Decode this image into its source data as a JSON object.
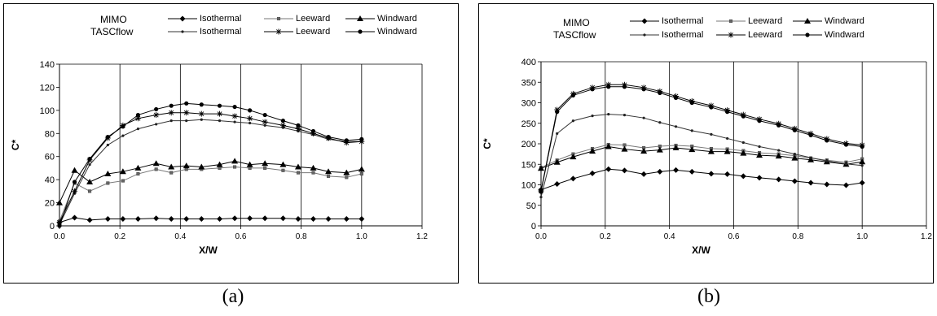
{
  "chart_data": [
    {
      "type": "line",
      "panel_label": "(a)",
      "xlabel": "X/W",
      "ylabel": "C*",
      "xlim": [
        0,
        1.2
      ],
      "ylim": [
        0,
        140
      ],
      "xticks": [
        "0.0",
        "0.2",
        "0.4",
        "0.6",
        "0.8",
        "1.0",
        "1.2"
      ],
      "yticks": [
        "0",
        "20",
        "40",
        "60",
        "80",
        "100",
        "120",
        "140"
      ],
      "legend_groups": [
        "MIMO",
        "TASCflow"
      ],
      "grid": "vertical",
      "legend_position": "top",
      "x": [
        0.0,
        0.05,
        0.1,
        0.16,
        0.21,
        0.26,
        0.32,
        0.37,
        0.42,
        0.47,
        0.53,
        0.58,
        0.63,
        0.68,
        0.74,
        0.79,
        0.84,
        0.89,
        0.95,
        1.0
      ],
      "series": [
        {
          "name": "Isothermal",
          "group": "MIMO",
          "marker": "diamond",
          "values": [
            3,
            7,
            5,
            6,
            6,
            6,
            6.5,
            6,
            6,
            6,
            6,
            6.5,
            6.5,
            6.5,
            6.5,
            6,
            6,
            6,
            6,
            6
          ]
        },
        {
          "name": "Leeward",
          "group": "MIMO",
          "marker": "square",
          "values": [
            4,
            37,
            30,
            37,
            39,
            45,
            49,
            46,
            49,
            49,
            50,
            51,
            50,
            50,
            48,
            46,
            46,
            43,
            42,
            45
          ]
        },
        {
          "name": "Windward",
          "group": "MIMO",
          "marker": "triangle",
          "values": [
            20,
            48,
            38,
            45,
            47,
            50,
            54,
            51,
            52,
            51,
            53,
            56,
            53,
            54,
            53,
            51,
            50,
            47,
            46,
            49
          ]
        },
        {
          "name": "Isothermal",
          "group": "TASCflow",
          "marker": "dot",
          "values": [
            1,
            28,
            53,
            70,
            78,
            84,
            88,
            91,
            91,
            92,
            91,
            90,
            89,
            87,
            85,
            82,
            79,
            75,
            73,
            73
          ]
        },
        {
          "name": "Leeward",
          "group": "TASCflow",
          "marker": "star",
          "values": [
            3,
            30,
            57,
            76,
            87,
            93,
            96,
            98,
            98,
            97,
            97,
            95,
            93,
            90,
            87,
            84,
            80,
            76,
            72,
            73
          ]
        },
        {
          "name": "Windward",
          "group": "TASCflow",
          "marker": "circle",
          "values": [
            0,
            38,
            58,
            77,
            86,
            96,
            101,
            104,
            106,
            105,
            104,
            103,
            100,
            96,
            91,
            87,
            82,
            77,
            74,
            75
          ]
        }
      ]
    },
    {
      "type": "line",
      "panel_label": "(b)",
      "xlabel": "X/W",
      "ylabel": "C*",
      "xlim": [
        0,
        1.2
      ],
      "ylim": [
        0,
        400
      ],
      "xticks": [
        "0.0",
        "0.2",
        "0.4",
        "0.6",
        "0.8",
        "1.0",
        "1.2"
      ],
      "yticks": [
        "0",
        "50",
        "100",
        "150",
        "200",
        "250",
        "300",
        "350",
        "400"
      ],
      "legend_groups": [
        "MIMO",
        "TASCflow"
      ],
      "grid": "vertical",
      "legend_position": "top",
      "x": [
        0.0,
        0.05,
        0.1,
        0.16,
        0.21,
        0.26,
        0.32,
        0.37,
        0.42,
        0.47,
        0.53,
        0.58,
        0.63,
        0.68,
        0.74,
        0.79,
        0.84,
        0.89,
        0.95,
        1.0
      ],
      "series": [
        {
          "name": "Isothermal",
          "group": "MIMO",
          "marker": "diamond",
          "values": [
            88,
            102,
            115,
            128,
            138,
            135,
            126,
            132,
            136,
            132,
            127,
            126,
            121,
            117,
            113,
            109,
            105,
            101,
            99,
            105
          ]
        },
        {
          "name": "Leeward",
          "group": "MIMO",
          "marker": "square",
          "values": [
            142,
            160,
            175,
            188,
            198,
            197,
            190,
            194,
            196,
            194,
            188,
            187,
            183,
            178,
            175,
            171,
            165,
            160,
            155,
            163
          ]
        },
        {
          "name": "Windward",
          "group": "MIMO",
          "marker": "triangle",
          "values": [
            140,
            155,
            168,
            182,
            193,
            187,
            182,
            185,
            190,
            186,
            181,
            181,
            177,
            172,
            170,
            165,
            161,
            156,
            150,
            156
          ]
        },
        {
          "name": "Isothermal",
          "group": "TASCflow",
          "marker": "dot",
          "values": [
            70,
            225,
            256,
            268,
            272,
            270,
            263,
            252,
            242,
            232,
            223,
            213,
            203,
            193,
            184,
            175,
            166,
            158,
            151,
            147
          ]
        },
        {
          "name": "Leeward",
          "group": "TASCflow",
          "marker": "star",
          "values": [
            85,
            283,
            322,
            337,
            344,
            344,
            337,
            328,
            316,
            304,
            293,
            282,
            271,
            260,
            249,
            237,
            225,
            212,
            201,
            197
          ]
        },
        {
          "name": "Windward",
          "group": "TASCflow",
          "marker": "circle",
          "values": [
            83,
            278,
            318,
            333,
            339,
            339,
            333,
            324,
            312,
            300,
            289,
            278,
            267,
            256,
            245,
            233,
            221,
            208,
            198,
            193
          ]
        }
      ]
    }
  ]
}
